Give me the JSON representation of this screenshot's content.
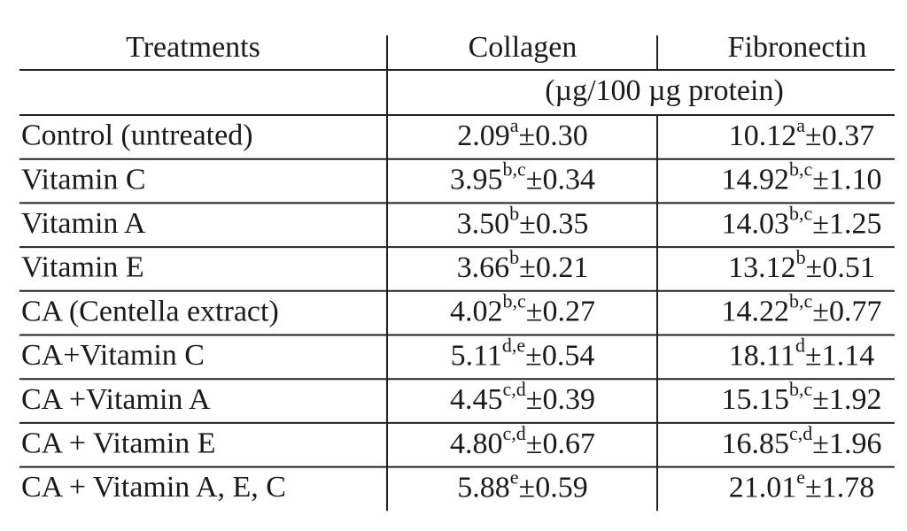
{
  "header": {
    "treatments": "Treatments",
    "collagen": "Collagen",
    "fibronectin": "Fibronectin",
    "unit": "(µg/100 µg protein)"
  },
  "rows": [
    {
      "treatment": "Control (untreated)",
      "collagen": {
        "mean": "2.09",
        "sig": "a",
        "sd": "±0.30"
      },
      "fibronectin": {
        "mean": "10.12",
        "sig": "a",
        "sd": "±0.37"
      }
    },
    {
      "treatment": "Vitamin C",
      "collagen": {
        "mean": "3.95",
        "sig": "b,c",
        "sd": "±0.34"
      },
      "fibronectin": {
        "mean": "14.92",
        "sig": "b,c",
        "sd": "±1.10"
      }
    },
    {
      "treatment": "Vitamin A",
      "collagen": {
        "mean": "3.50",
        "sig": "b",
        "sd": "±0.35"
      },
      "fibronectin": {
        "mean": "14.03",
        "sig": "b,c",
        "sd": "±1.25"
      }
    },
    {
      "treatment": "Vitamin E",
      "collagen": {
        "mean": "3.66",
        "sig": "b",
        "sd": "±0.21"
      },
      "fibronectin": {
        "mean": "13.12",
        "sig": "b",
        "sd": "±0.51"
      }
    },
    {
      "treatment": "CA (Centella extract)",
      "collagen": {
        "mean": "4.02",
        "sig": "b,c",
        "sd": "±0.27"
      },
      "fibronectin": {
        "mean": "14.22",
        "sig": "b,c",
        "sd": "±0.77"
      }
    },
    {
      "treatment": "CA+Vitamin C",
      "collagen": {
        "mean": "5.11",
        "sig": "d,e",
        "sd": "±0.54"
      },
      "fibronectin": {
        "mean": "18.11",
        "sig": "d",
        "sd": "±1.14"
      }
    },
    {
      "treatment": "CA +Vitamin A",
      "collagen": {
        "mean": "4.45",
        "sig": "c,d",
        "sd": "±0.39"
      },
      "fibronectin": {
        "mean": "15.15",
        "sig": "b,c",
        "sd": "±1.92"
      }
    },
    {
      "treatment": "CA + Vitamin E",
      "collagen": {
        "mean": "4.80",
        "sig": "c,d",
        "sd": "±0.67"
      },
      "fibronectin": {
        "mean": "16.85",
        "sig": "c,d",
        "sd": "±1.96"
      }
    },
    {
      "treatment": "CA + Vitamin A, E, C",
      "collagen": {
        "mean": "5.88",
        "sig": "e",
        "sd": "±0.59"
      },
      "fibronectin": {
        "mean": "21.01",
        "sig": "e",
        "sd": "±1.78"
      }
    }
  ]
}
